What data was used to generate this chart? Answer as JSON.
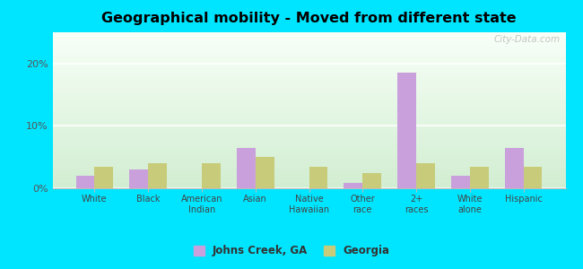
{
  "title": "Geographical mobility - Moved from different state",
  "categories": [
    "White",
    "Black",
    "American\nIndian",
    "Asian",
    "Native\nHawaiian",
    "Other\nrace",
    "2+\nraces",
    "White\nalone",
    "Hispanic"
  ],
  "johns_creek": [
    2.0,
    3.0,
    0.0,
    6.5,
    0.0,
    0.8,
    18.5,
    2.0,
    6.5
  ],
  "georgia": [
    3.5,
    4.0,
    4.0,
    5.0,
    3.5,
    2.5,
    4.0,
    3.5,
    3.5
  ],
  "johns_creek_color": "#c9a0dc",
  "georgia_color": "#c8cc7a",
  "background_outer": "#00e5ff",
  "ylim": [
    0,
    25
  ],
  "yticks": [
    0,
    10,
    20
  ],
  "ytick_labels": [
    "0%",
    "10%",
    "20%"
  ],
  "bar_width": 0.35,
  "legend_labels": [
    "Johns Creek, GA",
    "Georgia"
  ],
  "watermark": "City-Data.com"
}
